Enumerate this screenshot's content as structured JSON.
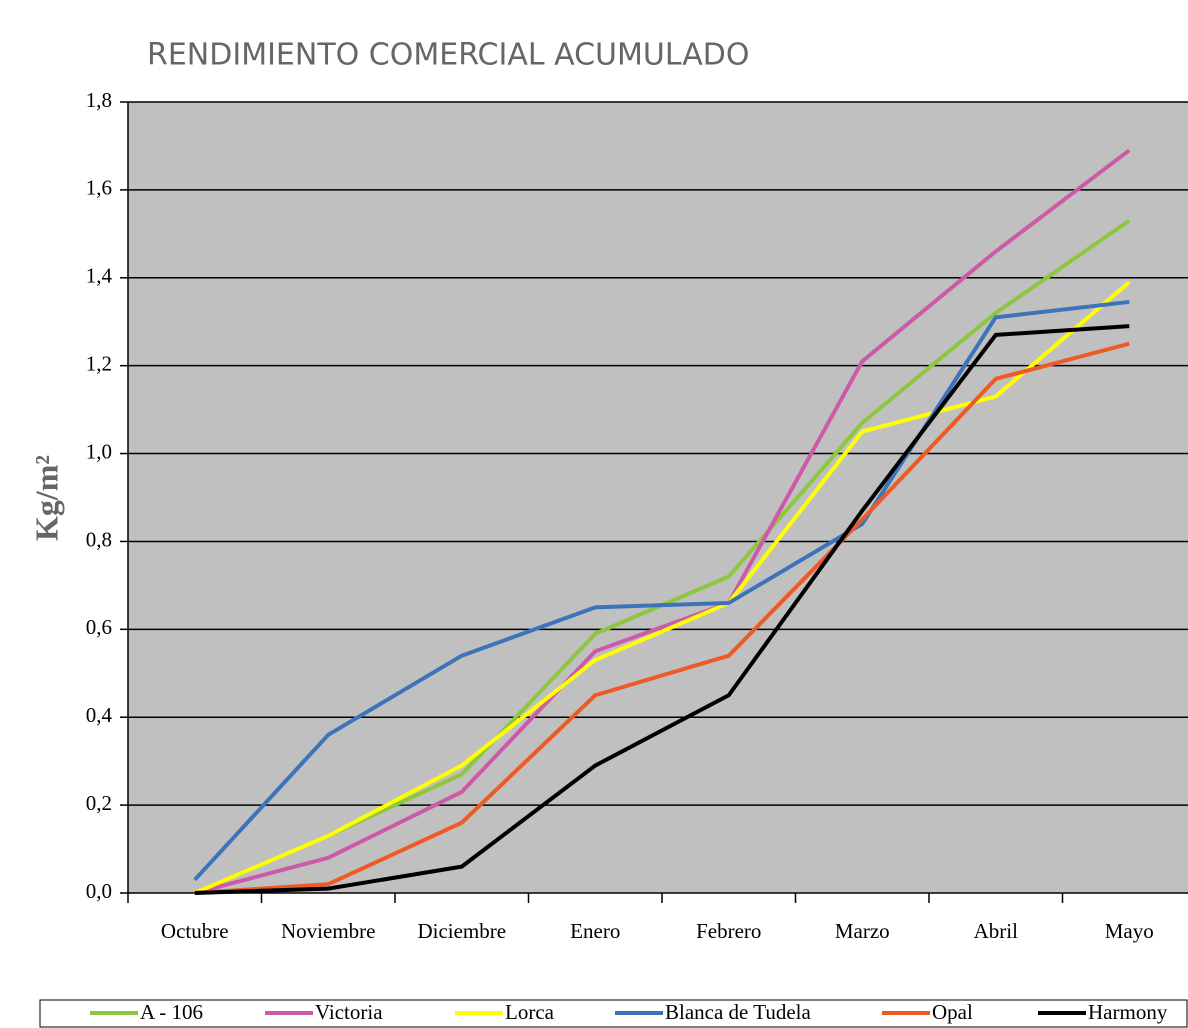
{
  "chart_data": {
    "type": "line",
    "title": "RENDIMIENTO COMERCIAL ACUMULADO",
    "y_label": "Kg/m²",
    "categories": [
      "Octubre",
      "Noviembre",
      "Diciembre",
      "Enero",
      "Febrero",
      "Marzo",
      "Abril",
      "Mayo"
    ],
    "series": [
      {
        "name": "A - 106",
        "color": "#8dc63f",
        "values": [
          0,
          0.13,
          0.27,
          0.59,
          0.72,
          1.07,
          1.32,
          1.53
        ]
      },
      {
        "name": "Victoria",
        "color": "#cc5aa8",
        "values": [
          0,
          0.08,
          0.23,
          0.55,
          0.66,
          1.21,
          1.46,
          1.69
        ]
      },
      {
        "name": "Lorca",
        "color": "#ffff00",
        "values": [
          0,
          0.13,
          0.29,
          0.53,
          0.66,
          1.05,
          1.13,
          1.39
        ]
      },
      {
        "name": "Blanca de Tudela",
        "color": "#3d74b9",
        "values": [
          0.03,
          0.36,
          0.54,
          0.65,
          0.66,
          0.84,
          1.31,
          1.345
        ]
      },
      {
        "name": "Opal",
        "color": "#ee5a24",
        "values": [
          0,
          0.02,
          0.16,
          0.45,
          0.54,
          0.85,
          1.17,
          1.25
        ]
      },
      {
        "name": "Harmony",
        "color": "#000000",
        "values": [
          0,
          0.01,
          0.06,
          0.29,
          0.45,
          0.87,
          1.27,
          1.29
        ]
      }
    ],
    "ylim": [
      0,
      1.8
    ],
    "yticks": [
      {
        "value": 0,
        "label": "0,0"
      },
      {
        "value": 0.2,
        "label": "0,2"
      },
      {
        "value": 0.4,
        "label": "0,4"
      },
      {
        "value": 0.6,
        "label": "0,6"
      },
      {
        "value": 0.8,
        "label": "0,8"
      },
      {
        "value": 1.0,
        "label": "1,0"
      },
      {
        "value": 1.2,
        "label": "1,2"
      },
      {
        "value": 1.4,
        "label": "1,4"
      },
      {
        "value": 1.6,
        "label": "1,6"
      },
      {
        "value": 1.8,
        "label": "1,8"
      }
    ],
    "grid": true,
    "legend": "bottom",
    "plot_background": "#c0c0c0"
  }
}
